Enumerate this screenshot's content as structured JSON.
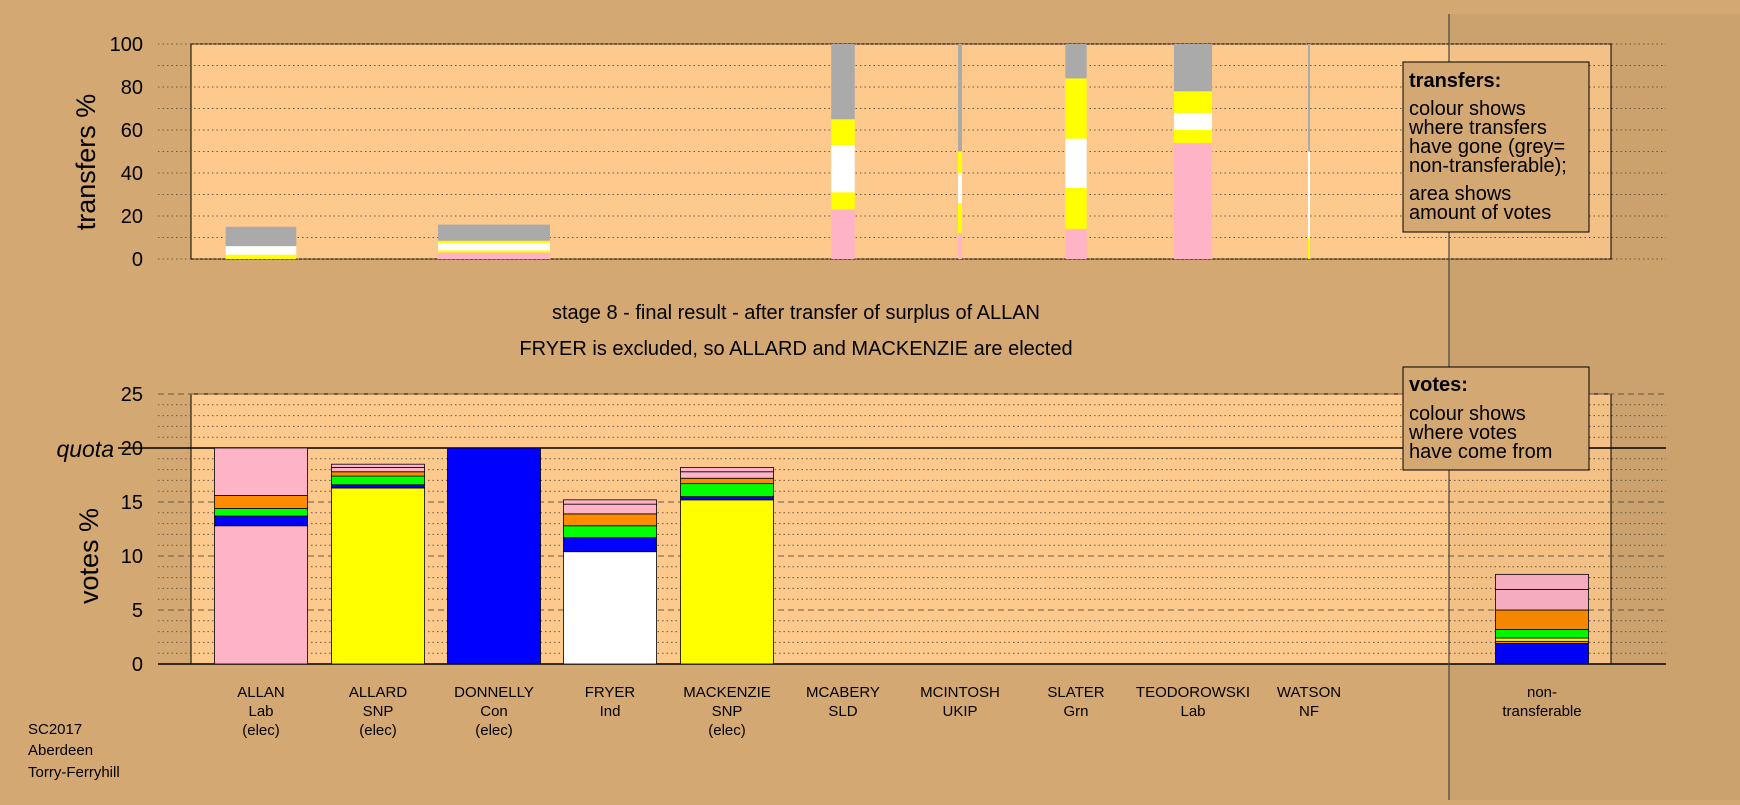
{
  "captions": {
    "line1": "stage 8 - final result - after transfer of surplus of ALLAN",
    "line2": "FRYER is excluded, so ALLARD and MACKENZIE are elected"
  },
  "footer": {
    "line1": "SC2017",
    "line2": "Aberdeen",
    "line3": "Torry-Ferryhill"
  },
  "legend_transfers": {
    "title": "transfers:",
    "line1": "colour shows",
    "line2": "where transfers",
    "line3": "have gone (grey=",
    "line4": "non-transferable);",
    "line5": "area shows",
    "line6": "amount of votes"
  },
  "legend_votes": {
    "title": "votes:",
    "line1": "colour shows",
    "line2": "where votes",
    "line3": "have come from"
  },
  "colors": {
    "background": "#d4a872",
    "plot_area": "#fdc98c",
    "Lab": "#ffb3c6",
    "SNP": "#ffff00",
    "Con": "#0000ff",
    "Ind": "#ffffff",
    "SLD": "#ff8c00",
    "UKIP": "#00ff00",
    "Grn": "#00ff00",
    "NF": "#ffffff",
    "nontransferable": "#aaaaaa"
  },
  "chart_data": [
    {
      "type": "bar",
      "subtype": "stacked-transfer-bars",
      "ylabel": "transfers %",
      "ylim": [
        0,
        100
      ],
      "yticks": [
        0,
        20,
        40,
        60,
        80,
        100
      ],
      "grid": true,
      "bars": [
        {
          "candidate": "ALLAN",
          "width_weight": 0.63,
          "segments": [
            {
              "color": "#ffff00",
              "value": 2.0
            },
            {
              "color": "#ffffff",
              "value": 4.0
            },
            {
              "color": "#aaaaaa",
              "value": 9.0
            }
          ]
        },
        {
          "candidate": "DONNELLY",
          "width_weight": 1.0,
          "segments": [
            {
              "color": "#ffb3c6",
              "value": 3.0
            },
            {
              "color": "#ffff00",
              "value": 1.0
            },
            {
              "color": "#ffffff",
              "value": 3.5
            },
            {
              "color": "#ffff00",
              "value": 1.0
            },
            {
              "color": "#aaaaaa",
              "value": 7.5
            }
          ]
        },
        {
          "candidate": "MCABERY",
          "width_weight": 0.21,
          "segments": [
            {
              "color": "#ffb3c6",
              "value": 23.0
            },
            {
              "color": "#ffff00",
              "value": 8.0
            },
            {
              "color": "#ffffff",
              "value": 22.0
            },
            {
              "color": "#ffff00",
              "value": 12.0
            },
            {
              "color": "#aaaaaa",
              "value": 35.0
            }
          ]
        },
        {
          "candidate": "MCINTOSH",
          "width_weight": 0.035,
          "segments": [
            {
              "color": "#ffb3c6",
              "value": 12.0
            },
            {
              "color": "#ffff00",
              "value": 14.0
            },
            {
              "color": "#ffffff",
              "value": 14.0
            },
            {
              "color": "#ffff00",
              "value": 10.0
            },
            {
              "color": "#aaaaaa",
              "value": 50.0
            }
          ]
        },
        {
          "candidate": "SLATER",
          "width_weight": 0.19,
          "segments": [
            {
              "color": "#ffb3c6",
              "value": 14.0
            },
            {
              "color": "#ffff00",
              "value": 19.0
            },
            {
              "color": "#ffffff",
              "value": 23.0
            },
            {
              "color": "#ffff00",
              "value": 28.0
            },
            {
              "color": "#aaaaaa",
              "value": 16.0
            }
          ]
        },
        {
          "candidate": "TEODOROWSKI",
          "width_weight": 0.34,
          "segments": [
            {
              "color": "#ffb3c6",
              "value": 54.0
            },
            {
              "color": "#ffff00",
              "value": 6.0
            },
            {
              "color": "#ffffff",
              "value": 8.0
            },
            {
              "color": "#ffff00",
              "value": 10.0
            },
            {
              "color": "#aaaaaa",
              "value": 22.0
            }
          ]
        },
        {
          "candidate": "WATSON",
          "width_weight": 0.015,
          "segments": [
            {
              "color": "#ffff00",
              "value": 10.0
            },
            {
              "color": "#ffffff",
              "value": 40.0
            },
            {
              "color": "#aaaaaa",
              "value": 50.0
            }
          ]
        }
      ]
    },
    {
      "type": "bar",
      "subtype": "stacked-vote-bars",
      "ylabel": "votes %",
      "ylim": [
        0,
        25
      ],
      "yticks": [
        0,
        5,
        10,
        15,
        20,
        25
      ],
      "quota": 20,
      "quota_label": "quota",
      "grid": true,
      "categories": [
        {
          "name": "ALLAN",
          "party": "Lab",
          "status": "(elec)"
        },
        {
          "name": "ALLARD",
          "party": "SNP",
          "status": "(elec)"
        },
        {
          "name": "DONNELLY",
          "party": "Con",
          "status": "(elec)"
        },
        {
          "name": "FRYER",
          "party": "Ind",
          "status": ""
        },
        {
          "name": "MACKENZIE",
          "party": "SNP",
          "status": "(elec)"
        },
        {
          "name": "MCABERY",
          "party": "SLD",
          "status": ""
        },
        {
          "name": "MCINTOSH",
          "party": "UKIP",
          "status": ""
        },
        {
          "name": "SLATER",
          "party": "Grn",
          "status": ""
        },
        {
          "name": "TEODOROWSKI",
          "party": "Lab",
          "status": ""
        },
        {
          "name": "WATSON",
          "party": "NF",
          "status": ""
        },
        {
          "name": "non-",
          "party": "transferable",
          "status": ""
        }
      ],
      "bars": [
        {
          "candidate": "ALLAN",
          "segments": [
            {
              "color": "#ffb3c6",
              "value": 12.8
            },
            {
              "color": "#0000ff",
              "value": 0.9
            },
            {
              "color": "#00ff00",
              "value": 0.7
            },
            {
              "color": "#ff8c00",
              "value": 1.2
            },
            {
              "color": "#ffb3c6",
              "value": 4.4
            }
          ]
        },
        {
          "candidate": "ALLARD",
          "segments": [
            {
              "color": "#ffff00",
              "value": 16.3
            },
            {
              "color": "#0000ff",
              "value": 0.3
            },
            {
              "color": "#00ff00",
              "value": 0.8
            },
            {
              "color": "#ff8c00",
              "value": 0.4
            },
            {
              "color": "#ffb3c6",
              "value": 0.4
            },
            {
              "color": "#ffb3c6",
              "value": 0.3
            }
          ]
        },
        {
          "candidate": "DONNELLY",
          "segments": [
            {
              "color": "#0000ff",
              "value": 20.0
            }
          ]
        },
        {
          "candidate": "FRYER",
          "segments": [
            {
              "color": "#ffffff",
              "value": 10.4
            },
            {
              "color": "#0000ff",
              "value": 1.3
            },
            {
              "color": "#00ff00",
              "value": 1.1
            },
            {
              "color": "#ff8c00",
              "value": 1.1
            },
            {
              "color": "#ffb3c6",
              "value": 0.9
            },
            {
              "color": "#ffb3c6",
              "value": 0.4
            }
          ]
        },
        {
          "candidate": "MACKENZIE",
          "segments": [
            {
              "color": "#ffff00",
              "value": 15.2
            },
            {
              "color": "#0000ff",
              "value": 0.3
            },
            {
              "color": "#00ff00",
              "value": 1.2
            },
            {
              "color": "#ff8c00",
              "value": 0.5
            },
            {
              "color": "#ffb3c6",
              "value": 0.6
            },
            {
              "color": "#ffb3c6",
              "value": 0.4
            }
          ]
        },
        {
          "candidate": "MCABERY",
          "segments": []
        },
        {
          "candidate": "MCINTOSH",
          "segments": []
        },
        {
          "candidate": "SLATER",
          "segments": []
        },
        {
          "candidate": "TEODOROWSKI",
          "segments": []
        },
        {
          "candidate": "WATSON",
          "segments": []
        },
        {
          "candidate": "non-transferable",
          "segments": [
            {
              "color": "#0000ff",
              "value": 1.9
            },
            {
              "color": "#ff8c00",
              "value": 0.2
            },
            {
              "color": "#ffff00",
              "value": 0.3
            },
            {
              "color": "#00ff00",
              "value": 0.8
            },
            {
              "color": "#ff8c00",
              "value": 1.8
            },
            {
              "color": "#ffb3c6",
              "value": 1.9
            },
            {
              "color": "#ffb3c6",
              "value": 1.4
            }
          ]
        }
      ]
    }
  ]
}
